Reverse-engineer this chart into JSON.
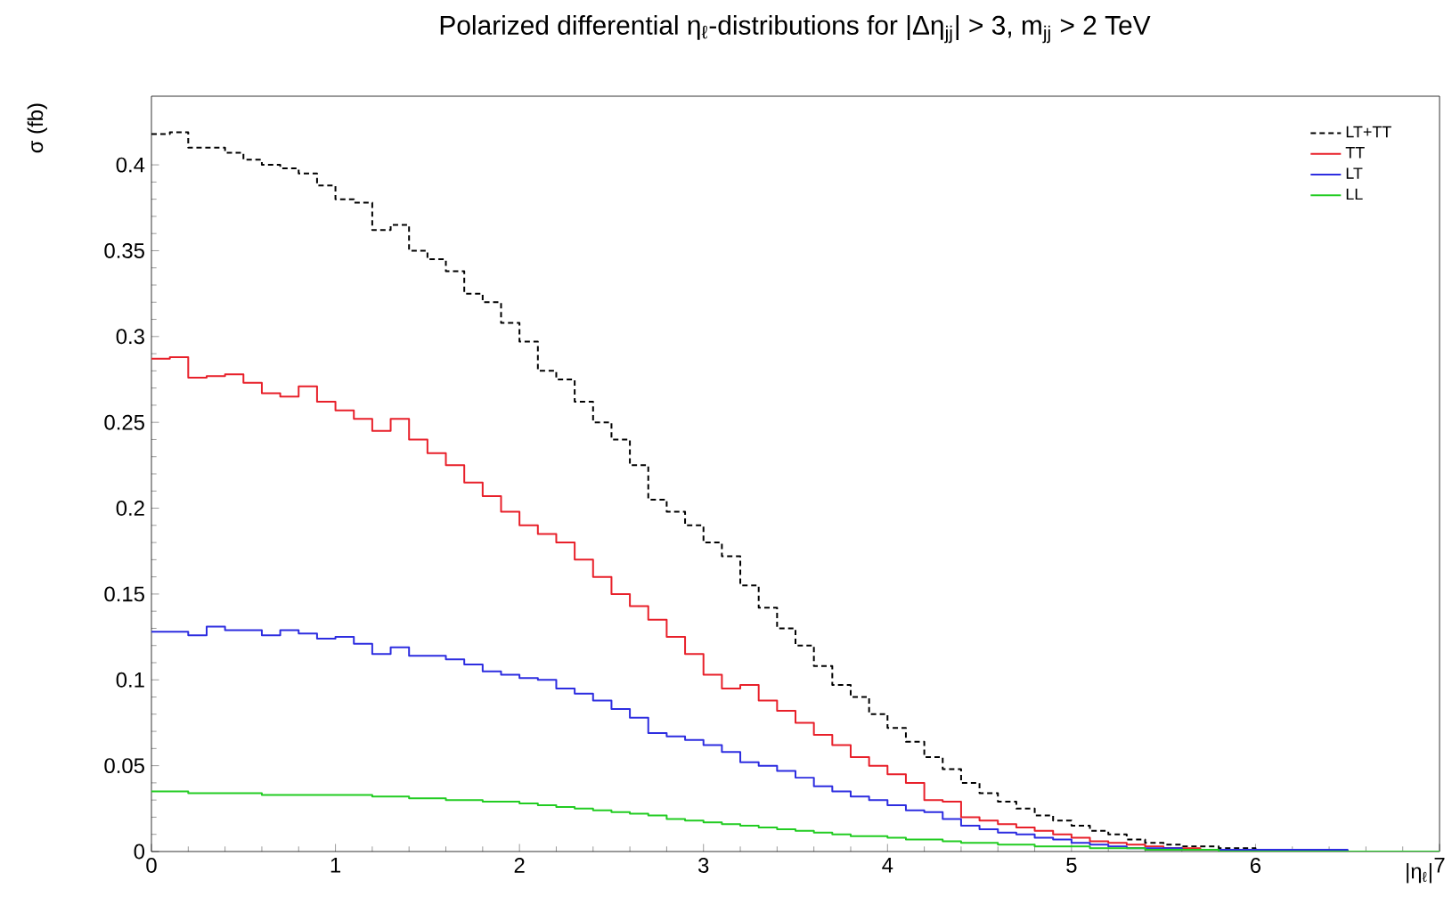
{
  "chart_data": {
    "type": "histogram",
    "title": "Polarized differential η$_{ℓ}$-distributions for |Δη$_{jj}$| > 3, m$_{jj}$ > 2 TeV",
    "xlabel": "|η$_{ℓ}$|",
    "ylabel": "σ (fb)",
    "bins": [
      0,
      0.1,
      0.2,
      0.3,
      0.4,
      0.5,
      0.6,
      0.7,
      0.8,
      0.9,
      1.0,
      1.1,
      1.2,
      1.3,
      1.4,
      1.5,
      1.6,
      1.7,
      1.8,
      1.9,
      2.0,
      2.1,
      2.2,
      2.3,
      2.4,
      2.5,
      2.6,
      2.7,
      2.8,
      2.9,
      3.0,
      3.1,
      3.2,
      3.3,
      3.4,
      3.5,
      3.6,
      3.7,
      3.8,
      3.9,
      4.0,
      4.1,
      4.2,
      4.3,
      4.4,
      4.5,
      4.6,
      4.7,
      4.8,
      4.9,
      5.0,
      5.1,
      5.2,
      5.3,
      5.4,
      5.5,
      5.6,
      5.7,
      5.8,
      5.9,
      6.0,
      6.1,
      6.2,
      6.3,
      6.4,
      6.5,
      6.6,
      6.7,
      6.8,
      6.9,
      7.0
    ],
    "series": [
      {
        "name": "LT+TT",
        "color": "#000000",
        "line_style": "dashed",
        "values": [
          0.418,
          0.419,
          0.41,
          0.41,
          0.407,
          0.403,
          0.4,
          0.398,
          0.395,
          0.388,
          0.38,
          0.378,
          0.362,
          0.365,
          0.35,
          0.345,
          0.338,
          0.325,
          0.32,
          0.308,
          0.297,
          0.28,
          0.275,
          0.262,
          0.25,
          0.24,
          0.225,
          0.205,
          0.198,
          0.19,
          0.18,
          0.172,
          0.155,
          0.142,
          0.13,
          0.12,
          0.108,
          0.097,
          0.09,
          0.08,
          0.072,
          0.064,
          0.055,
          0.048,
          0.04,
          0.034,
          0.029,
          0.025,
          0.021,
          0.018,
          0.015,
          0.012,
          0.01,
          0.007,
          0.005,
          0.004,
          0.003,
          0.003,
          0.002,
          0.002,
          0.001,
          0.001,
          0.001,
          0.001,
          0.001,
          0,
          0,
          0,
          0,
          0
        ]
      },
      {
        "name": "TT",
        "color": "#e8202a",
        "values": [
          0.287,
          0.288,
          0.276,
          0.277,
          0.278,
          0.273,
          0.267,
          0.265,
          0.271,
          0.262,
          0.257,
          0.252,
          0.245,
          0.252,
          0.24,
          0.232,
          0.225,
          0.215,
          0.207,
          0.198,
          0.19,
          0.185,
          0.18,
          0.17,
          0.16,
          0.15,
          0.143,
          0.135,
          0.125,
          0.115,
          0.103,
          0.095,
          0.097,
          0.088,
          0.082,
          0.075,
          0.068,
          0.062,
          0.055,
          0.05,
          0.045,
          0.04,
          0.03,
          0.029,
          0.02,
          0.018,
          0.016,
          0.014,
          0.012,
          0.01,
          0.008,
          0.006,
          0.005,
          0.004,
          0.003,
          0.002,
          0.002,
          0.001,
          0.001,
          0.001,
          0,
          0,
          0,
          0,
          0,
          0,
          0,
          0,
          0,
          0
        ]
      },
      {
        "name": "LT",
        "color": "#2d2de0",
        "values": [
          0.128,
          0.128,
          0.126,
          0.131,
          0.129,
          0.129,
          0.126,
          0.129,
          0.127,
          0.124,
          0.125,
          0.121,
          0.115,
          0.119,
          0.114,
          0.114,
          0.112,
          0.109,
          0.105,
          0.103,
          0.101,
          0.1,
          0.095,
          0.092,
          0.088,
          0.083,
          0.078,
          0.069,
          0.067,
          0.065,
          0.062,
          0.058,
          0.052,
          0.05,
          0.047,
          0.043,
          0.038,
          0.035,
          0.032,
          0.03,
          0.027,
          0.024,
          0.023,
          0.019,
          0.015,
          0.013,
          0.011,
          0.01,
          0.008,
          0.007,
          0.005,
          0.004,
          0.003,
          0.002,
          0.002,
          0.002,
          0.001,
          0.001,
          0.001,
          0.001,
          0.001,
          0.001,
          0.001,
          0.001,
          0.001,
          0,
          0,
          0,
          0,
          0
        ]
      },
      {
        "name": "LL",
        "color": "#22cc22",
        "values": [
          0.035,
          0.035,
          0.034,
          0.034,
          0.034,
          0.034,
          0.033,
          0.033,
          0.033,
          0.033,
          0.033,
          0.033,
          0.032,
          0.032,
          0.031,
          0.031,
          0.03,
          0.03,
          0.029,
          0.029,
          0.028,
          0.027,
          0.026,
          0.025,
          0.024,
          0.023,
          0.022,
          0.021,
          0.019,
          0.018,
          0.017,
          0.016,
          0.015,
          0.014,
          0.013,
          0.012,
          0.011,
          0.01,
          0.009,
          0.009,
          0.008,
          0.007,
          0.007,
          0.006,
          0.005,
          0.005,
          0.004,
          0.004,
          0.003,
          0.003,
          0.003,
          0.002,
          0.002,
          0.002,
          0.001,
          0.001,
          0.001,
          0.001,
          0,
          0,
          0,
          0,
          0,
          0,
          0,
          0,
          0,
          0,
          0,
          0
        ]
      }
    ],
    "xlim": [
      0,
      7
    ],
    "ylim": [
      0,
      0.44
    ],
    "xticks": [
      0,
      1,
      2,
      3,
      4,
      5,
      6,
      7
    ],
    "yticks": [
      0,
      0.05,
      0.1,
      0.15,
      0.2,
      0.25,
      0.3,
      0.35,
      0.4
    ],
    "legend": "top right"
  }
}
